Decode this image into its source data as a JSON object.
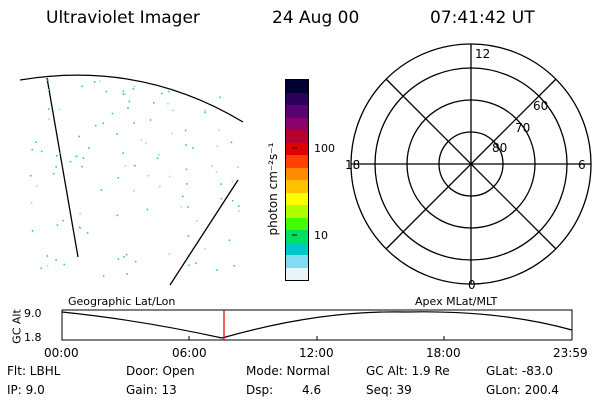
{
  "header": {
    "instrument": "Ultraviolet Imager",
    "date": "24 Aug 00",
    "time": "07:41:42 UT"
  },
  "colorbar": {
    "unit_label": "photon cm⁻²s⁻¹",
    "tick_labels": [
      "100",
      "10"
    ],
    "colors": [
      "#000033",
      "#2a005a",
      "#5a0070",
      "#8b006a",
      "#b80030",
      "#e00000",
      "#ff4000",
      "#ff8c00",
      "#ffc000",
      "#ffff00",
      "#b0ff00",
      "#40ff00",
      "#00e060",
      "#00c8c8",
      "#80dcf0",
      "#e8f4f8"
    ]
  },
  "polar_plot": {
    "mlt_labels": {
      "top": "12",
      "left": "18",
      "right": "6",
      "bottom": "0"
    },
    "lat_labels": [
      "60",
      "70",
      "80"
    ]
  },
  "timeline": {
    "y_axis_title": "GC Alt",
    "y_ticks": [
      "9.0",
      "1.8"
    ],
    "left_caption": "Geographic Lat/Lon",
    "right_caption": "Apex MLat/MLT",
    "x_ticks": [
      "00:00",
      "06:00",
      "12:00",
      "18:00",
      "23:59"
    ],
    "current_time_marker_color": "#e00000"
  },
  "status": {
    "filter": "Flt: LBHL",
    "ip": "IP:  9.0",
    "door": "Door: Open",
    "gain": "Gain: 13",
    "mode": "Mode: Normal",
    "dsp_label": "Dsp:",
    "dsp_value": "4.6",
    "gc_alt": "GC Alt: 1.9 Re",
    "seq": "Seq: 39",
    "glat": "GLat: -83.0",
    "glon": "GLon: 200.4"
  }
}
